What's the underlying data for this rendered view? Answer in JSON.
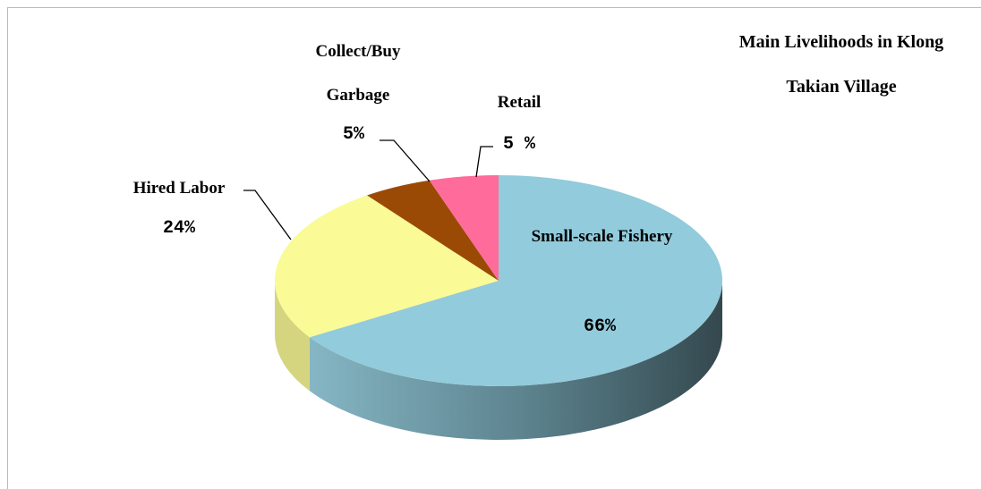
{
  "chart_data": {
    "type": "pie3d",
    "title": "Main Livelihoods in Klong Takian Village",
    "categories": [
      "Small-scale Fishery",
      "Hired Labor",
      "Collect/Buy Garbage",
      "Retail"
    ],
    "values": [
      66,
      24,
      5,
      5
    ],
    "value_labels": [
      "66%",
      "24%",
      "5%",
      "5 %"
    ],
    "colors": [
      "#92cbdb",
      "#fafa96",
      "#9b4a06",
      "#ff6b9a"
    ]
  }
}
